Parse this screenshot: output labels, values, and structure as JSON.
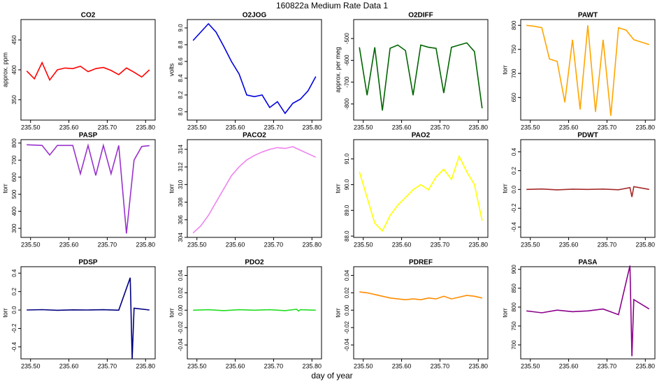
{
  "title": "160822a   Medium Rate Data 1",
  "xlabel": "day of year",
  "chart_data": [
    {
      "type": "line",
      "title": "CO2",
      "ylabel": "approx. ppm",
      "color": "#ff0000",
      "x": [
        235.49,
        235.51,
        235.53,
        235.55,
        235.57,
        235.59,
        235.61,
        235.63,
        235.65,
        235.67,
        235.69,
        235.71,
        235.73,
        235.75,
        235.77,
        235.79,
        235.81
      ],
      "values": [
        398,
        385,
        412,
        383,
        400,
        403,
        402,
        406,
        397,
        402,
        404,
        399,
        392,
        403,
        396,
        388,
        400
      ],
      "xlim": [
        235.475,
        235.825
      ],
      "ylim": [
        316,
        484
      ],
      "yticks": [
        350,
        400,
        450
      ],
      "xticks": [
        {
          "value": 235.5,
          "label": "235.50"
        },
        {
          "value": 235.6,
          "label": "235.60"
        },
        {
          "value": 235.7,
          "label": "235.70"
        },
        {
          "value": 235.8,
          "label": "235.80"
        }
      ]
    },
    {
      "type": "line",
      "title": "O2JOG",
      "ylabel": "volts",
      "color": "#0000dd",
      "x": [
        235.49,
        235.51,
        235.53,
        235.55,
        235.57,
        235.59,
        235.61,
        235.63,
        235.65,
        235.67,
        235.69,
        235.71,
        235.73,
        235.75,
        235.77,
        235.79,
        235.81
      ],
      "values": [
        8.85,
        8.95,
        9.05,
        8.95,
        8.78,
        8.6,
        8.45,
        8.2,
        8.18,
        8.2,
        8.05,
        8.12,
        7.98,
        8.1,
        8.15,
        8.25,
        8.42
      ],
      "xlim": [
        235.475,
        235.825
      ],
      "ylim": [
        7.9,
        9.1
      ],
      "yticks": [
        {
          "value": 8,
          "label": "8.0"
        },
        8.2,
        8.4,
        8.6,
        8.8,
        {
          "value": 9,
          "label": "9.0"
        }
      ],
      "xticks": [
        {
          "value": 235.5,
          "label": "235.50"
        },
        {
          "value": 235.6,
          "label": "235.60"
        },
        {
          "value": 235.7,
          "label": "235.70"
        },
        {
          "value": 235.8,
          "label": "235.80"
        }
      ]
    },
    {
      "type": "line",
      "title": "O2DIFF",
      "ylabel": "approx. per meg",
      "color": "#006400",
      "x": [
        235.49,
        235.51,
        235.53,
        235.55,
        235.57,
        235.59,
        235.61,
        235.63,
        235.65,
        235.67,
        235.69,
        235.71,
        235.73,
        235.75,
        235.77,
        235.79,
        235.81
      ],
      "values": [
        -540,
        -760,
        -540,
        -830,
        -545,
        -530,
        -555,
        -760,
        -530,
        -540,
        -545,
        -750,
        -540,
        -530,
        -520,
        -560,
        -820
      ],
      "xlim": [
        235.475,
        235.825
      ],
      "ylim": [
        -874,
        -413
      ],
      "yticks": [
        -800,
        -700,
        -600,
        -500
      ],
      "xticks": [
        {
          "value": 235.5,
          "label": "235.50"
        },
        {
          "value": 235.6,
          "label": "235.60"
        },
        {
          "value": 235.7,
          "label": "235.70"
        },
        {
          "value": 235.8,
          "label": "235.80"
        }
      ]
    },
    {
      "type": "line",
      "title": "PAWT",
      "ylabel": "torr",
      "color": "#ffa500",
      "x": [
        235.49,
        235.51,
        235.53,
        235.55,
        235.57,
        235.59,
        235.61,
        235.63,
        235.65,
        235.67,
        235.69,
        235.71,
        235.73,
        235.75,
        235.77,
        235.79,
        235.81
      ],
      "values": [
        800,
        798,
        795,
        730,
        725,
        640,
        770,
        625,
        800,
        620,
        770,
        612,
        795,
        790,
        770,
        765,
        760
      ],
      "xlim": [
        235.475,
        235.825
      ],
      "ylim": [
        603,
        812
      ],
      "yticks": [
        650,
        700,
        750,
        800
      ],
      "xticks": [
        {
          "value": 235.5,
          "label": "235.50"
        },
        {
          "value": 235.6,
          "label": "235.60"
        },
        {
          "value": 235.7,
          "label": "235.70"
        },
        {
          "value": 235.8,
          "label": "235.80"
        }
      ]
    },
    {
      "type": "line",
      "title": "PASP",
      "ylabel": "torr",
      "color": "#9932cc",
      "x": [
        235.49,
        235.51,
        235.53,
        235.55,
        235.57,
        235.59,
        235.61,
        235.63,
        235.65,
        235.67,
        235.69,
        235.71,
        235.73,
        235.75,
        235.77,
        235.79,
        235.81
      ],
      "values": [
        790,
        788,
        786,
        730,
        786,
        786,
        786,
        620,
        786,
        610,
        786,
        620,
        786,
        270,
        700,
        780,
        785
      ],
      "xlim": [
        235.475,
        235.825
      ],
      "ylim": [
        247,
        820
      ],
      "yticks": [
        300,
        400,
        500,
        600,
        700,
        800
      ],
      "xticks": [
        {
          "value": 235.5,
          "label": "235.50"
        },
        {
          "value": 235.6,
          "label": "235.60"
        },
        {
          "value": 235.7,
          "label": "235.70"
        },
        {
          "value": 235.8,
          "label": "235.80"
        }
      ]
    },
    {
      "type": "line",
      "title": "PACO2",
      "ylabel": "torr",
      "color": "#ee82ee",
      "x": [
        235.49,
        235.51,
        235.53,
        235.55,
        235.57,
        235.59,
        235.61,
        235.63,
        235.65,
        235.67,
        235.69,
        235.71,
        235.73,
        235.75,
        235.77,
        235.79,
        235.81
      ],
      "values": [
        304.5,
        305.3,
        306.5,
        308,
        309.5,
        311,
        312,
        312.8,
        313.3,
        313.7,
        314,
        314.2,
        314.1,
        314.3,
        313.9,
        313.5,
        313.1
      ],
      "xlim": [
        235.475,
        235.825
      ],
      "ylim": [
        304,
        315.1
      ],
      "yticks": [
        304,
        306,
        308,
        310,
        312,
        314
      ],
      "xticks": [
        {
          "value": 235.5,
          "label": "235.50"
        },
        {
          "value": 235.6,
          "label": "235.60"
        },
        {
          "value": 235.7,
          "label": "235.70"
        },
        {
          "value": 235.8,
          "label": "235.80"
        }
      ]
    },
    {
      "type": "line",
      "title": "PAO2",
      "ylabel": "torr",
      "color": "#ffff00",
      "x": [
        235.49,
        235.51,
        235.53,
        235.55,
        235.57,
        235.59,
        235.61,
        235.63,
        235.65,
        235.67,
        235.69,
        235.71,
        235.73,
        235.75,
        235.77,
        235.79,
        235.81
      ],
      "values": [
        90.5,
        89.5,
        88.5,
        88.2,
        88.8,
        89.2,
        89.5,
        89.8,
        90.0,
        89.8,
        90.3,
        90.6,
        90.2,
        91.1,
        90.5,
        90.0,
        88.6
      ],
      "xlim": [
        235.475,
        235.825
      ],
      "ylim": [
        87.95,
        91.75
      ],
      "yticks": [
        {
          "value": 88,
          "label": "88.0"
        },
        {
          "value": 89,
          "label": "89.0"
        },
        {
          "value": 90,
          "label": "90.0"
        },
        {
          "value": 91,
          "label": "91.0"
        }
      ],
      "xticks": [
        {
          "value": 235.5,
          "label": "235.50"
        },
        {
          "value": 235.6,
          "label": "235.60"
        },
        {
          "value": 235.7,
          "label": "235.70"
        },
        {
          "value": 235.8,
          "label": "235.80"
        }
      ]
    },
    {
      "type": "line",
      "title": "PDWT",
      "ylabel": "torr",
      "color": "#a52a2a",
      "x": [
        235.49,
        235.53,
        235.57,
        235.61,
        235.65,
        235.69,
        235.73,
        235.76,
        235.765,
        235.77,
        235.81
      ],
      "values": [
        0,
        0.005,
        -0.004,
        0.003,
        0,
        0.004,
        -0.003,
        0.02,
        -0.08,
        0.03,
        0
      ],
      "xlim": [
        235.475,
        235.825
      ],
      "ylim": [
        -0.51,
        0.53
      ],
      "yticks": [
        -0.4,
        -0.2,
        {
          "value": 0,
          "label": "0.0"
        },
        0.2,
        0.4
      ],
      "xticks": [
        {
          "value": 235.5,
          "label": "235.50"
        },
        {
          "value": 235.6,
          "label": "235.60"
        },
        {
          "value": 235.7,
          "label": "235.70"
        },
        {
          "value": 235.8,
          "label": "235.80"
        }
      ]
    },
    {
      "type": "line",
      "title": "PDSP",
      "ylabel": "torr",
      "color": "#000080",
      "x": [
        235.49,
        235.53,
        235.57,
        235.61,
        235.65,
        235.69,
        235.73,
        235.76,
        235.765,
        235.77,
        235.81
      ],
      "values": [
        0,
        0.004,
        -0.003,
        0.002,
        0,
        0.003,
        -0.002,
        0.35,
        -0.53,
        0.02,
        0
      ],
      "xlim": [
        235.475,
        235.825
      ],
      "ylim": [
        -0.53,
        0.47
      ],
      "yticks": [
        -0.4,
        -0.2,
        {
          "value": 0,
          "label": "0.0"
        },
        0.2,
        0.4
      ],
      "xticks": [
        {
          "value": 235.5,
          "label": "235.50"
        },
        {
          "value": 235.6,
          "label": "235.60"
        },
        {
          "value": 235.7,
          "label": "235.70"
        },
        {
          "value": 235.8,
          "label": "235.80"
        }
      ]
    },
    {
      "type": "line",
      "title": "PDO2",
      "ylabel": "torr",
      "color": "#22dd22",
      "x": [
        235.49,
        235.53,
        235.57,
        235.61,
        235.65,
        235.69,
        235.73,
        235.76,
        235.765,
        235.77,
        235.81
      ],
      "values": [
        0,
        0.0005,
        -0.0005,
        0.0005,
        0,
        0.0005,
        -0.0005,
        0.001,
        -0.001,
        0.0005,
        0
      ],
      "xlim": [
        235.475,
        235.825
      ],
      "ylim": [
        -0.056,
        0.05
      ],
      "yticks": [
        -0.04,
        -0.02,
        {
          "value": 0,
          "label": "0.00"
        },
        0.02,
        0.04
      ],
      "xticks": [
        {
          "value": 235.5,
          "label": "235.50"
        },
        {
          "value": 235.6,
          "label": "235.60"
        },
        {
          "value": 235.7,
          "label": "235.70"
        },
        {
          "value": 235.8,
          "label": "235.80"
        }
      ]
    },
    {
      "type": "line",
      "title": "PDREF",
      "ylabel": "torr",
      "color": "#ff8c00",
      "x": [
        235.49,
        235.51,
        235.53,
        235.55,
        235.57,
        235.59,
        235.61,
        235.63,
        235.65,
        235.67,
        235.69,
        235.71,
        235.73,
        235.75,
        235.77,
        235.79,
        235.81
      ],
      "values": [
        0.021,
        0.02,
        0.018,
        0.016,
        0.014,
        0.013,
        0.012,
        0.013,
        0.012,
        0.014,
        0.013,
        0.016,
        0.013,
        0.015,
        0.017,
        0.016,
        0.014
      ],
      "xlim": [
        235.475,
        235.825
      ],
      "ylim": [
        -0.056,
        0.05
      ],
      "yticks": [
        -0.04,
        -0.02,
        {
          "value": 0,
          "label": "0.00"
        },
        0.02,
        0.04
      ],
      "xticks": [
        {
          "value": 235.5,
          "label": "235.50"
        },
        {
          "value": 235.6,
          "label": "235.60"
        },
        {
          "value": 235.7,
          "label": "235.70"
        },
        {
          "value": 235.8,
          "label": "235.80"
        }
      ]
    },
    {
      "type": "line",
      "title": "PASA",
      "ylabel": "torr",
      "color": "#8b008b",
      "x": [
        235.49,
        235.53,
        235.57,
        235.61,
        235.65,
        235.69,
        235.73,
        235.76,
        235.765,
        235.77,
        235.81
      ],
      "values": [
        790,
        785,
        792,
        788,
        790,
        795,
        780,
        910,
        670,
        820,
        795
      ],
      "xlim": [
        235.475,
        235.825
      ],
      "ylim": [
        663,
        907
      ],
      "yticks": [
        700,
        750,
        800,
        850,
        900
      ],
      "xticks": [
        {
          "value": 235.5,
          "label": "235.50"
        },
        {
          "value": 235.6,
          "label": "235.60"
        },
        {
          "value": 235.7,
          "label": "235.70"
        },
        {
          "value": 235.8,
          "label": "235.80"
        }
      ]
    }
  ]
}
